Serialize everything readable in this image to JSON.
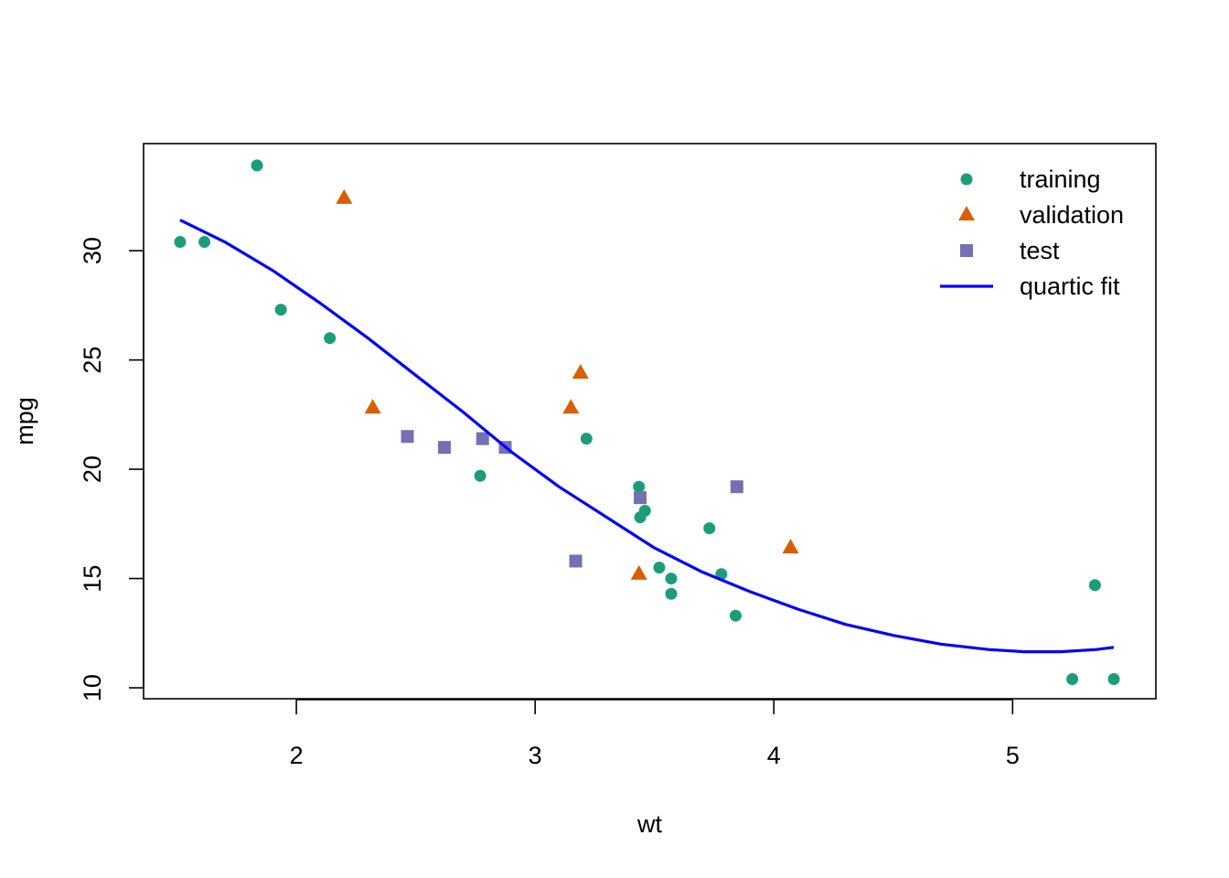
{
  "chart_data": {
    "type": "scatter",
    "title": "",
    "xlabel": "wt",
    "ylabel": "mpg",
    "xlim": [
      1.36,
      5.6
    ],
    "ylim": [
      9.5,
      34.9
    ],
    "xticks": [
      2,
      3,
      4,
      5
    ],
    "yticks": [
      10,
      15,
      20,
      25,
      30
    ],
    "grid": false,
    "legend_position": "top-right",
    "series": [
      {
        "name": "training",
        "marker": "circle",
        "color": "#1b9e77",
        "points": [
          [
            1.513,
            30.4
          ],
          [
            1.615,
            30.4
          ],
          [
            1.835,
            33.9
          ],
          [
            1.935,
            27.3
          ],
          [
            2.14,
            26.0
          ],
          [
            2.77,
            19.7
          ],
          [
            3.215,
            21.4
          ],
          [
            3.435,
            19.2
          ],
          [
            3.44,
            17.8
          ],
          [
            3.46,
            18.1
          ],
          [
            3.52,
            15.5
          ],
          [
            3.57,
            15.0
          ],
          [
            3.57,
            14.3
          ],
          [
            3.73,
            17.3
          ],
          [
            3.78,
            15.2
          ],
          [
            3.84,
            13.3
          ],
          [
            5.25,
            10.4
          ],
          [
            5.345,
            14.7
          ],
          [
            5.424,
            10.4
          ]
        ]
      },
      {
        "name": "validation",
        "marker": "triangle",
        "color": "#d95f02",
        "points": [
          [
            2.2,
            32.4
          ],
          [
            2.32,
            22.8
          ],
          [
            3.15,
            22.8
          ],
          [
            3.19,
            24.4
          ],
          [
            3.435,
            15.2
          ],
          [
            4.07,
            16.4
          ]
        ]
      },
      {
        "name": "test",
        "marker": "square",
        "color": "#7570b3",
        "points": [
          [
            2.465,
            21.5
          ],
          [
            2.62,
            21.0
          ],
          [
            2.78,
            21.4
          ],
          [
            2.875,
            21.0
          ],
          [
            3.17,
            15.8
          ],
          [
            3.44,
            18.7
          ],
          [
            3.845,
            19.2
          ]
        ]
      }
    ],
    "fit": {
      "name": "quartic fit",
      "color": "#0000ff",
      "points": [
        [
          1.513,
          31.4
        ],
        [
          1.7,
          30.4
        ],
        [
          1.9,
          29.1
        ],
        [
          2.1,
          27.6
        ],
        [
          2.3,
          26.0
        ],
        [
          2.5,
          24.3
        ],
        [
          2.7,
          22.6
        ],
        [
          2.9,
          20.8
        ],
        [
          3.1,
          19.2
        ],
        [
          3.3,
          17.8
        ],
        [
          3.5,
          16.4
        ],
        [
          3.7,
          15.3
        ],
        [
          3.9,
          14.4
        ],
        [
          4.1,
          13.6
        ],
        [
          4.3,
          12.9
        ],
        [
          4.5,
          12.4
        ],
        [
          4.7,
          12.0
        ],
        [
          4.9,
          11.75
        ],
        [
          5.05,
          11.65
        ],
        [
          5.2,
          11.65
        ],
        [
          5.35,
          11.75
        ],
        [
          5.424,
          11.85
        ]
      ]
    }
  }
}
